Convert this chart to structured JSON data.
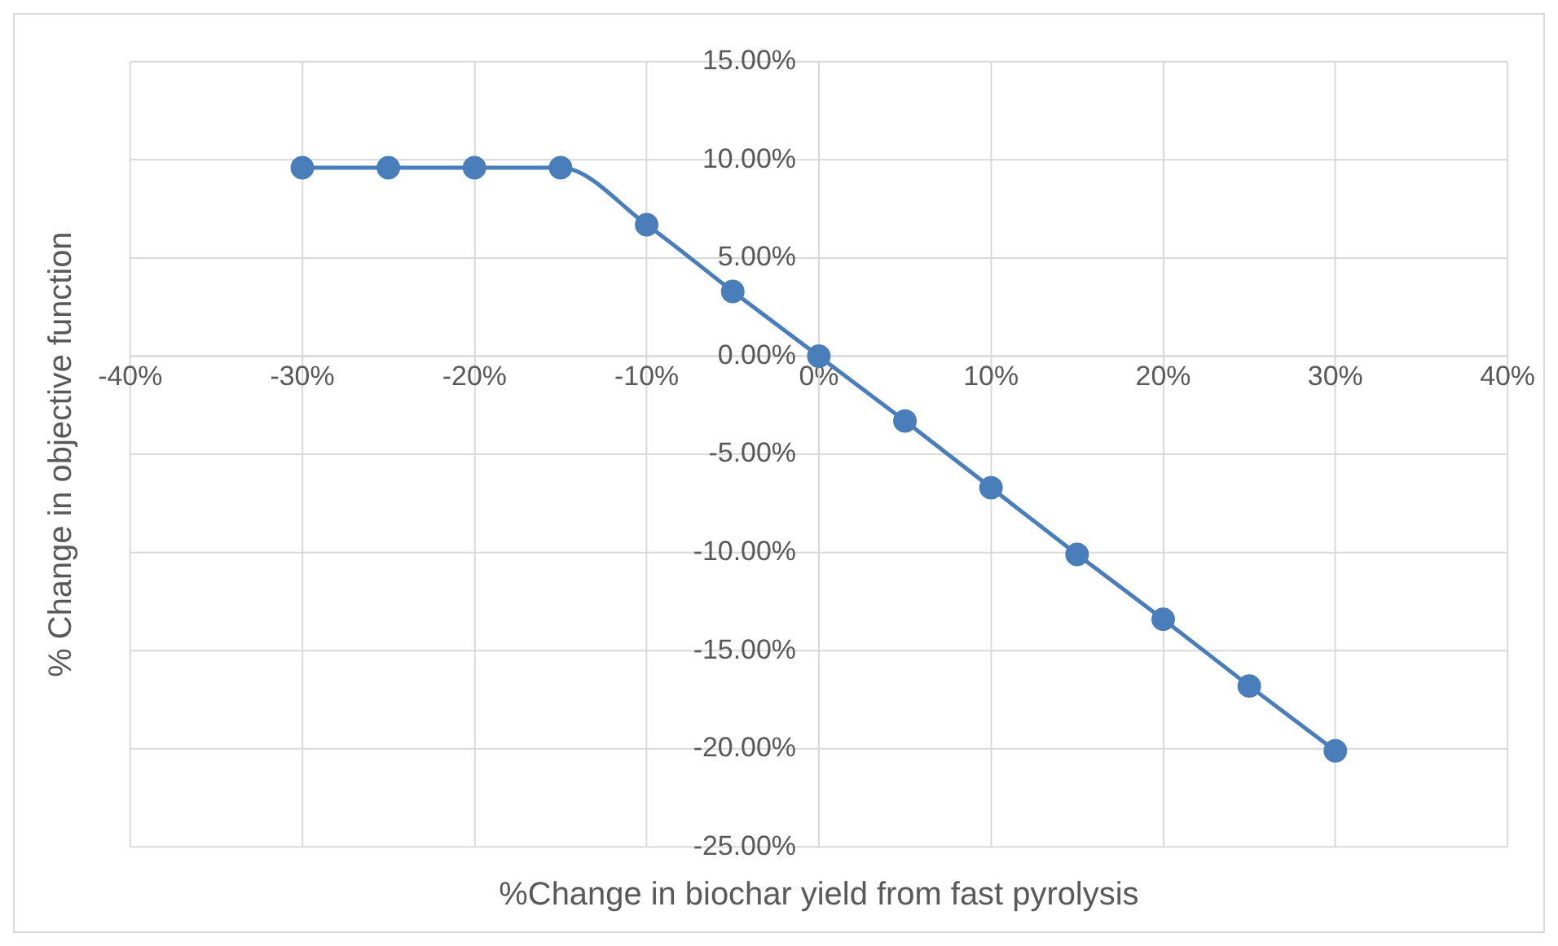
{
  "chart_data": {
    "type": "line",
    "xlabel": "%Change in biochar yield from fast pyrolysis",
    "ylabel": "% Change in objective function",
    "x": [
      -30,
      -25,
      -20,
      -15,
      -10,
      -5,
      0,
      5,
      10,
      15,
      20,
      25,
      30
    ],
    "series": [
      {
        "color": "#4a7ebb",
        "values": [
          9.6,
          9.6,
          9.6,
          9.6,
          6.7,
          3.3,
          0,
          -3.3,
          -6.7,
          -10.1,
          -13.4,
          -16.8,
          -20.1
        ]
      }
    ],
    "xlim": [
      -40,
      40
    ],
    "xticks": [
      {
        "value": -40,
        "label": "-40%"
      },
      {
        "value": -30,
        "label": "-30%"
      },
      {
        "value": -20,
        "label": "-20%"
      },
      {
        "value": -10,
        "label": "-10%"
      },
      {
        "value": 0,
        "label": "0%"
      },
      {
        "value": 10,
        "label": "10%"
      },
      {
        "value": 20,
        "label": "20%"
      },
      {
        "value": 30,
        "label": "30%"
      },
      {
        "value": 40,
        "label": "40%"
      }
    ],
    "ylim": [
      -25,
      15
    ],
    "yticks": [
      {
        "value": -25,
        "label": "-25.00%"
      },
      {
        "value": -20,
        "label": "-20.00%"
      },
      {
        "value": -15,
        "label": "-15.00%"
      },
      {
        "value": -10,
        "label": "-10.00%"
      },
      {
        "value": -5,
        "label": "-5.00%"
      },
      {
        "value": 0,
        "label": "0.00%"
      },
      {
        "value": 5,
        "label": "5.00%"
      },
      {
        "value": 10,
        "label": "10.00%"
      },
      {
        "value": 15,
        "label": "15.00%"
      }
    ],
    "grid": true,
    "marker": "circle",
    "legend": false
  }
}
